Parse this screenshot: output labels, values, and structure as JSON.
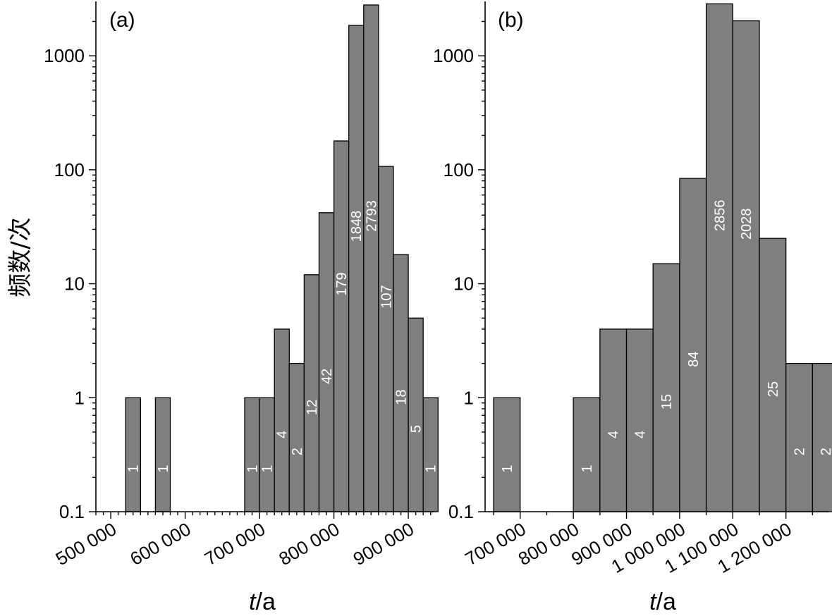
{
  "y_axis_label": "频数/次",
  "chart_data": [
    {
      "type": "bar",
      "panel_label": "(a)",
      "xlabel_var": "t",
      "xlabel_unit": "/a",
      "y_scale": "log",
      "ylim": [
        0.1,
        3000
      ],
      "xlim": [
        480000,
        935000
      ],
      "ytick_values": [
        0.1,
        1,
        10,
        100,
        1000
      ],
      "ytick_labels": [
        "0.1",
        "1",
        "10",
        "100",
        "1000"
      ],
      "xtick_values": [
        500000,
        600000,
        700000,
        800000,
        900000
      ],
      "xtick_labels": [
        "500 000",
        "600 000",
        "700 000",
        "800 000",
        "900 000"
      ],
      "bin_width": 20000,
      "bars": [
        {
          "x": 530000,
          "value": 1,
          "label": "1"
        },
        {
          "x": 570000,
          "value": 1,
          "label": "1"
        },
        {
          "x": 690000,
          "value": 1,
          "label": "1"
        },
        {
          "x": 710000,
          "value": 1,
          "label": "1"
        },
        {
          "x": 730000,
          "value": 4,
          "label": "4"
        },
        {
          "x": 750000,
          "value": 2,
          "label": "2"
        },
        {
          "x": 770000,
          "value": 12,
          "label": "12"
        },
        {
          "x": 790000,
          "value": 42,
          "label": "42"
        },
        {
          "x": 810000,
          "value": 179,
          "label": "179"
        },
        {
          "x": 830000,
          "value": 1848,
          "label": "1848"
        },
        {
          "x": 850000,
          "value": 2793,
          "label": "2793"
        },
        {
          "x": 870000,
          "value": 107,
          "label": "107"
        },
        {
          "x": 890000,
          "value": 18,
          "label": "18"
        },
        {
          "x": 910000,
          "value": 5,
          "label": "5"
        },
        {
          "x": 930000,
          "value": 1,
          "label": "1"
        }
      ]
    },
    {
      "type": "bar",
      "panel_label": "(b)",
      "xlabel_var": "t",
      "xlabel_unit": "/a",
      "y_scale": "log",
      "ylim": [
        0.1,
        3000
      ],
      "xlim": [
        634000,
        1280000
      ],
      "ytick_values": [
        0.1,
        1,
        10,
        100,
        1000
      ],
      "ytick_labels": [
        "0.1",
        "1",
        "10",
        "100",
        "1000"
      ],
      "xtick_values": [
        700000,
        800000,
        900000,
        1000000,
        1100000,
        1200000
      ],
      "xtick_labels": [
        "700 000",
        "800 000",
        "900 000",
        "1 000 000",
        "1 100 000",
        "1 200 000"
      ],
      "bin_width": 50000,
      "bars": [
        {
          "x": 675000,
          "value": 1,
          "label": "1"
        },
        {
          "x": 825000,
          "value": 1,
          "label": "1"
        },
        {
          "x": 875000,
          "value": 4,
          "label": "4"
        },
        {
          "x": 925000,
          "value": 4,
          "label": "4"
        },
        {
          "x": 975000,
          "value": 15,
          "label": "15"
        },
        {
          "x": 1025000,
          "value": 84,
          "label": "84"
        },
        {
          "x": 1075000,
          "value": 2856,
          "label": "2856"
        },
        {
          "x": 1125000,
          "value": 2028,
          "label": "2028"
        },
        {
          "x": 1175000,
          "value": 25,
          "label": "25"
        },
        {
          "x": 1225000,
          "value": 2,
          "label": "2"
        },
        {
          "x": 1275000,
          "value": 2,
          "label": "2"
        }
      ]
    }
  ]
}
